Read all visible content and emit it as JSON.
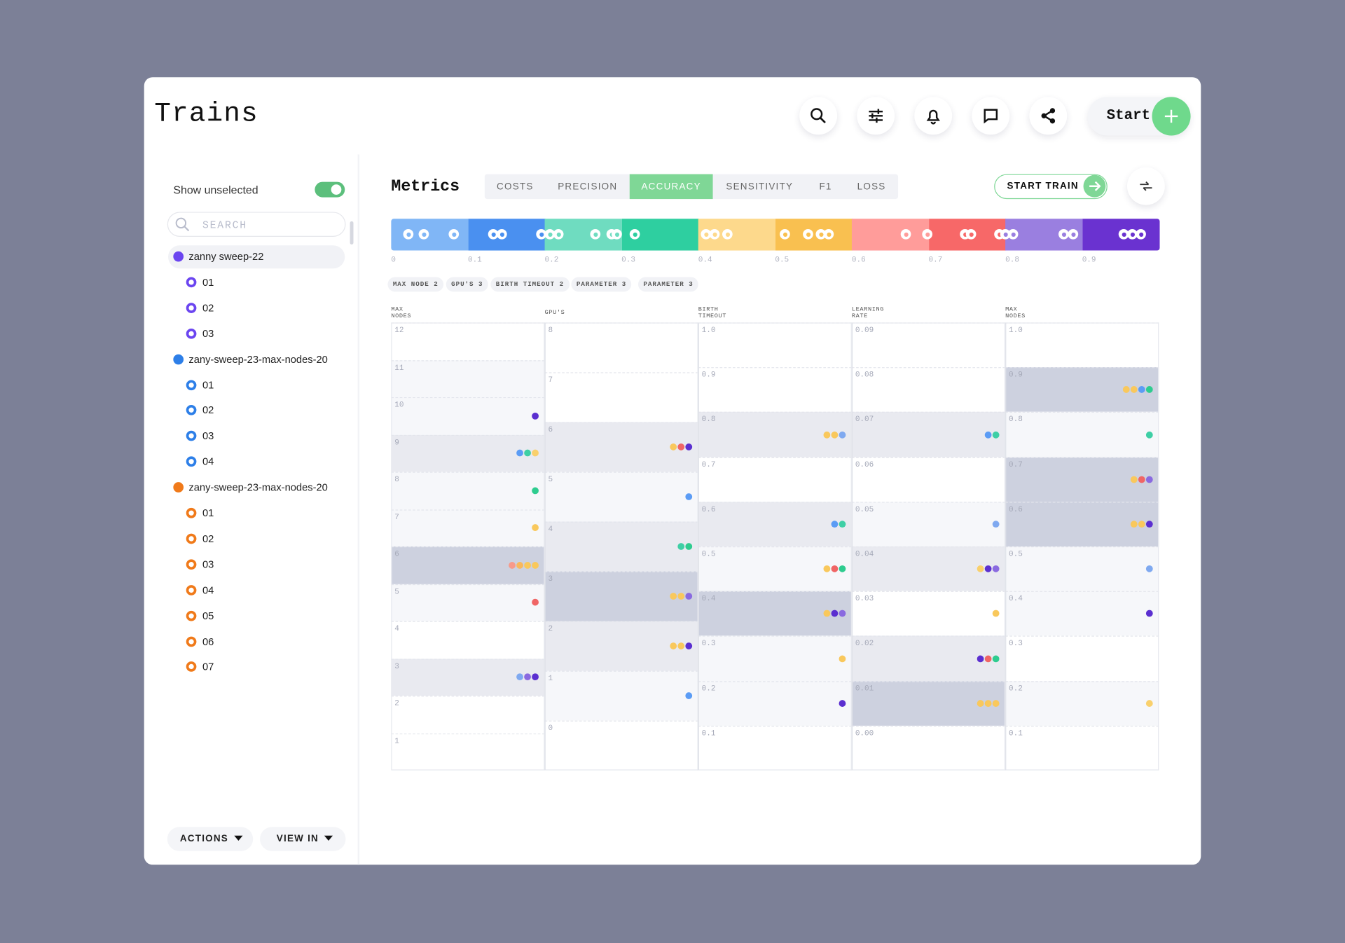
{
  "header": {
    "title": "Trains",
    "start": "Start"
  },
  "sidebar": {
    "show_unselected": "Show unselected",
    "search": "SEARCH",
    "groups": [
      {
        "name": "zanny sweep-22",
        "color": "#6b45f0",
        "items": [
          "01",
          "02",
          "03"
        ]
      },
      {
        "name": "zany-sweep-23-max-nodes-20",
        "color": "#2d7fe8",
        "items": [
          "01",
          "02",
          "03",
          "04"
        ]
      },
      {
        "name": "zany-sweep-23-max-nodes-20",
        "color": "#f07a1a",
        "items": [
          "01",
          "02",
          "03",
          "04",
          "05",
          "06",
          "07"
        ]
      }
    ],
    "actions": "ACTIONS",
    "view_in": "VIEW IN"
  },
  "metrics": {
    "title": "Metrics",
    "tabs": [
      "COSTS",
      "PRECISION",
      "ACCURACY",
      "SENSITIVITY",
      "F1",
      "LOSS"
    ],
    "active_tab": 2,
    "start_train": "START TRAIN",
    "scale": {
      "colors": [
        "#80b6f6",
        "#4a90f0",
        "#6fdcc0",
        "#2ecfa0",
        "#fdd98c",
        "#f9c050",
        "#ff9c9a",
        "#f76868",
        "#9a7fe0",
        "#6a32d0"
      ],
      "ticks": [
        "0",
        "0.1",
        "0.2",
        "0.3",
        "0.4",
        "0.5",
        "0.6",
        "0.7",
        "0.8",
        "0.9"
      ]
    },
    "filters": [
      "MAX NODE 2",
      "GPU'S 3",
      "BIRTH TIMEOUT 2",
      "PARAMETER 3",
      "PARAMETER 3"
    ],
    "columns": [
      {
        "header": "MAX NODES",
        "rows": [
          {
            "label": "12",
            "shade": "none",
            "dots": []
          },
          {
            "label": "11",
            "shade": "light",
            "dots": []
          },
          {
            "label": "10",
            "shade": "light",
            "dots": [
              "#5b2fd0"
            ]
          },
          {
            "label": "9",
            "shade": "mid",
            "dots": [
              "#5b9cf5",
              "#3ecfa5",
              "#f9d06c"
            ]
          },
          {
            "label": "8",
            "shade": "light",
            "dots": [
              "#2ecc8f"
            ]
          },
          {
            "label": "7",
            "shade": "light",
            "dots": [
              "#f9c85c"
            ]
          },
          {
            "label": "6",
            "shade": "dark",
            "dots": [
              "#f89a8a",
              "#f9b85c",
              "#f9c85c",
              "#f9c85c"
            ]
          },
          {
            "label": "5",
            "shade": "light",
            "dots": [
              "#f06565"
            ]
          },
          {
            "label": "4",
            "shade": "none",
            "dots": []
          },
          {
            "label": "3",
            "shade": "mid",
            "dots": [
              "#7fa9f0",
              "#8a6ae0",
              "#5b2fd0"
            ]
          },
          {
            "label": "2",
            "shade": "none",
            "dots": []
          },
          {
            "label": "1",
            "shade": "none",
            "dots": []
          }
        ]
      },
      {
        "header": "GPU'S",
        "rows": [
          {
            "label": "8",
            "shade": "none",
            "dots": []
          },
          {
            "label": "7",
            "shade": "none",
            "dots": []
          },
          {
            "label": "6",
            "shade": "mid",
            "dots": [
              "#f9c85c",
              "#f06565",
              "#5b2fd0"
            ]
          },
          {
            "label": "5",
            "shade": "light",
            "dots": [
              "#5b9cf5"
            ]
          },
          {
            "label": "4",
            "shade": "mid",
            "dots": [
              "#3ecfa5",
              "#2ecc8f"
            ]
          },
          {
            "label": "3",
            "shade": "dark",
            "dots": [
              "#f9c85c",
              "#f9c85c",
              "#8a6ae0"
            ]
          },
          {
            "label": "2",
            "shade": "mid",
            "dots": [
              "#f9c85c",
              "#f9c85c",
              "#5b2fd0"
            ]
          },
          {
            "label": "1",
            "shade": "light",
            "dots": [
              "#5b9cf5"
            ]
          },
          {
            "label": "0",
            "shade": "none",
            "dots": []
          }
        ]
      },
      {
        "header": "BIRTH TIMEOUT",
        "rows": [
          {
            "label": "1.0",
            "shade": "none",
            "dots": []
          },
          {
            "label": "0.9",
            "shade": "none",
            "dots": []
          },
          {
            "label": "0.8",
            "shade": "mid",
            "dots": [
              "#f9c85c",
              "#f9c85c",
              "#7fa9f0"
            ]
          },
          {
            "label": "0.7",
            "shade": "none",
            "dots": []
          },
          {
            "label": "0.6",
            "shade": "mid",
            "dots": [
              "#5b9cf5",
              "#3ecfa5"
            ]
          },
          {
            "label": "0.5",
            "shade": "light",
            "dots": [
              "#f9c85c",
              "#f06565",
              "#2ecc8f"
            ]
          },
          {
            "label": "0.4",
            "shade": "dark",
            "dots": [
              "#f9c85c",
              "#5b2fd0",
              "#8a6ae0"
            ]
          },
          {
            "label": "0.3",
            "shade": "light",
            "dots": [
              "#f9c85c"
            ]
          },
          {
            "label": "0.2",
            "shade": "light",
            "dots": [
              "#5b2fd0"
            ]
          },
          {
            "label": "0.1",
            "shade": "none",
            "dots": []
          }
        ]
      },
      {
        "header": "LEARNING RATE",
        "rows": [
          {
            "label": "0.09",
            "shade": "none",
            "dots": []
          },
          {
            "label": "0.08",
            "shade": "none",
            "dots": []
          },
          {
            "label": "0.07",
            "shade": "mid",
            "dots": [
              "#5b9cf5",
              "#3ecfa5"
            ]
          },
          {
            "label": "0.06",
            "shade": "none",
            "dots": []
          },
          {
            "label": "0.05",
            "shade": "light",
            "dots": [
              "#7fa9f0"
            ]
          },
          {
            "label": "0.04",
            "shade": "mid",
            "dots": [
              "#f9d06c",
              "#5b2fd0",
              "#8a6ae0"
            ]
          },
          {
            "label": "0.03",
            "shade": "none",
            "dots": [
              "#f9c85c"
            ]
          },
          {
            "label": "0.02",
            "shade": "mid",
            "dots": [
              "#5b2fd0",
              "#f06565",
              "#2ecc8f"
            ]
          },
          {
            "label": "0.01",
            "shade": "dark",
            "dots": [
              "#f9c85c",
              "#f9c85c",
              "#f9c85c"
            ]
          },
          {
            "label": "0.00",
            "shade": "none",
            "dots": []
          }
        ]
      },
      {
        "header": "MAX NODES",
        "rows": [
          {
            "label": "1.0",
            "shade": "none",
            "dots": []
          },
          {
            "label": "0.9",
            "shade": "dark",
            "dots": [
              "#f9c85c",
              "#f9c85c",
              "#5b9cf5",
              "#2ecc8f"
            ]
          },
          {
            "label": "0.8",
            "shade": "light",
            "dots": [
              "#3ecfa5"
            ]
          },
          {
            "label": "0.7",
            "shade": "dark",
            "dots": [
              "#f9c85c",
              "#f06565",
              "#8a6ae0"
            ]
          },
          {
            "label": "0.6",
            "shade": "dark",
            "dots": [
              "#f9c85c",
              "#f9c85c",
              "#5b2fd0"
            ]
          },
          {
            "label": "0.5",
            "shade": "light",
            "dots": [
              "#7fa9f0"
            ]
          },
          {
            "label": "0.4",
            "shade": "light",
            "dots": [
              "#5b2fd0"
            ]
          },
          {
            "label": "0.3",
            "shade": "none",
            "dots": []
          },
          {
            "label": "0.2",
            "shade": "light",
            "dots": [
              "#f9d06c"
            ]
          },
          {
            "label": "0.1",
            "shade": "none",
            "dots": []
          }
        ]
      }
    ]
  }
}
